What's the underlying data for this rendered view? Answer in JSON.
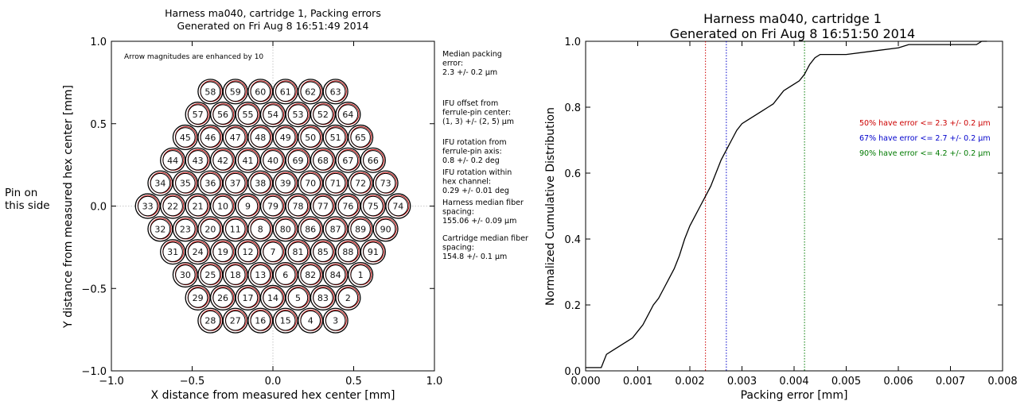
{
  "chart_data": [
    {
      "type": "scatter",
      "title": "Harness ma040, cartridge 1, Packing errors\nGenerated on Fri Aug  8 16:51:49 2014",
      "xlabel": "X distance from measured hex center [mm]",
      "ylabel": "Y distance from measured hex center [mm]",
      "xlim": [
        -1.0,
        1.0
      ],
      "ylim": [
        -1.0,
        1.0
      ],
      "xticks": [
        "−1.0",
        "−0.5",
        "0.0",
        "0.5",
        "1.0"
      ],
      "yticks": [
        "−1.0",
        "−0.5",
        "0.0",
        "0.5",
        "1.0"
      ],
      "side_label": "Pin on\nthis side",
      "note": "Arrow magnitudes are enhanced by 10",
      "annotations": [
        "Median packing\nerror:\n 2.3 +/- 0.2 μm",
        "IFU offset from\nferrule-pin center:\n (1, 3) +/- (2, 5) μm",
        "IFU rotation from\nferrule-pin axis:\n 0.8 +/- 0.2 deg",
        "IFU rotation within\nhex channel:\n 0.29 +/- 0.01 deg",
        "Harness median fiber\nspacing:\n 155.06 +/- 0.09 μm",
        "Cartridge median fiber\nspacing:\n 154.8 +/- 0.1 μm"
      ],
      "fiber_rows": [
        {
          "y": 0.695,
          "labels": [
            58,
            59,
            60,
            61,
            62,
            63
          ]
        },
        {
          "y": 0.556,
          "labels": [
            57,
            56,
            55,
            54,
            53,
            52,
            64
          ]
        },
        {
          "y": 0.417,
          "labels": [
            45,
            46,
            47,
            48,
            49,
            50,
            51,
            65
          ]
        },
        {
          "y": 0.278,
          "labels": [
            44,
            43,
            42,
            41,
            40,
            69,
            68,
            67,
            66
          ]
        },
        {
          "y": 0.139,
          "labels": [
            34,
            35,
            36,
            37,
            38,
            39,
            70,
            71,
            72,
            73
          ]
        },
        {
          "y": 0.0,
          "labels": [
            33,
            22,
            21,
            10,
            9,
            79,
            78,
            77,
            76,
            75,
            74
          ]
        },
        {
          "y": -0.139,
          "labels": [
            32,
            23,
            20,
            11,
            8,
            80,
            86,
            87,
            89,
            90
          ]
        },
        {
          "y": -0.278,
          "labels": [
            31,
            24,
            19,
            12,
            7,
            81,
            85,
            88,
            91
          ]
        },
        {
          "y": -0.417,
          "labels": [
            30,
            25,
            18,
            13,
            6,
            82,
            84,
            1
          ]
        },
        {
          "y": -0.556,
          "labels": [
            29,
            26,
            17,
            14,
            5,
            83,
            2
          ]
        },
        {
          "y": -0.695,
          "labels": [
            28,
            27,
            16,
            15,
            4,
            3
          ]
        }
      ],
      "fiber_pitch_mm": 0.155
    },
    {
      "type": "line",
      "title": "Harness ma040, cartridge 1\nGenerated on Fri Aug  8 16:51:50 2014",
      "xlabel": "Packing error [mm]",
      "ylabel": "Normalized Cumulative Distribution",
      "xlim": [
        0.0,
        0.008
      ],
      "ylim": [
        0.0,
        1.0
      ],
      "xticks": [
        "0.000",
        "0.001",
        "0.002",
        "0.003",
        "0.004",
        "0.005",
        "0.006",
        "0.007",
        "0.008"
      ],
      "yticks": [
        "0.0",
        "0.2",
        "0.4",
        "0.6",
        "0.8",
        "1.0"
      ],
      "grid": false,
      "series": [
        {
          "color": "#000000",
          "x": [
            0.0,
            0.0003,
            0.00035,
            0.0004,
            0.0005,
            0.0006,
            0.0007,
            0.0008,
            0.0009,
            0.001,
            0.0011,
            0.0012,
            0.0013,
            0.0014,
            0.0015,
            0.0016,
            0.0017,
            0.0018,
            0.0019,
            0.002,
            0.0021,
            0.0022,
            0.0023,
            0.0024,
            0.0025,
            0.0026,
            0.0027,
            0.0028,
            0.0029,
            0.003,
            0.0031,
            0.0032,
            0.0033,
            0.0034,
            0.0035,
            0.0036,
            0.0037,
            0.0038,
            0.0039,
            0.004,
            0.0041,
            0.0042,
            0.0043,
            0.0044,
            0.0045,
            0.0047,
            0.005,
            0.0055,
            0.006,
            0.0062,
            0.007,
            0.0075,
            0.0076,
            0.0077
          ],
          "y": [
            0.01,
            0.01,
            0.03,
            0.05,
            0.06,
            0.07,
            0.08,
            0.09,
            0.1,
            0.12,
            0.14,
            0.17,
            0.2,
            0.22,
            0.25,
            0.28,
            0.31,
            0.35,
            0.4,
            0.44,
            0.47,
            0.5,
            0.53,
            0.56,
            0.6,
            0.64,
            0.67,
            0.7,
            0.73,
            0.75,
            0.76,
            0.77,
            0.78,
            0.79,
            0.8,
            0.81,
            0.83,
            0.85,
            0.86,
            0.87,
            0.88,
            0.9,
            0.93,
            0.95,
            0.96,
            0.96,
            0.96,
            0.97,
            0.98,
            0.99,
            0.99,
            0.99,
            1.0,
            1.0
          ]
        }
      ],
      "vlines": [
        {
          "x": 0.0023,
          "color": "#cc0000",
          "label": "50% have error <= 2.3 +/- 0.2 μm"
        },
        {
          "x": 0.0027,
          "color": "#0000cc",
          "label": "67% have error <= 2.7 +/- 0.2 μm"
        },
        {
          "x": 0.0042,
          "color": "#007a00",
          "label": "90% have error <= 4.2 +/- 0.2 μm"
        }
      ]
    }
  ]
}
